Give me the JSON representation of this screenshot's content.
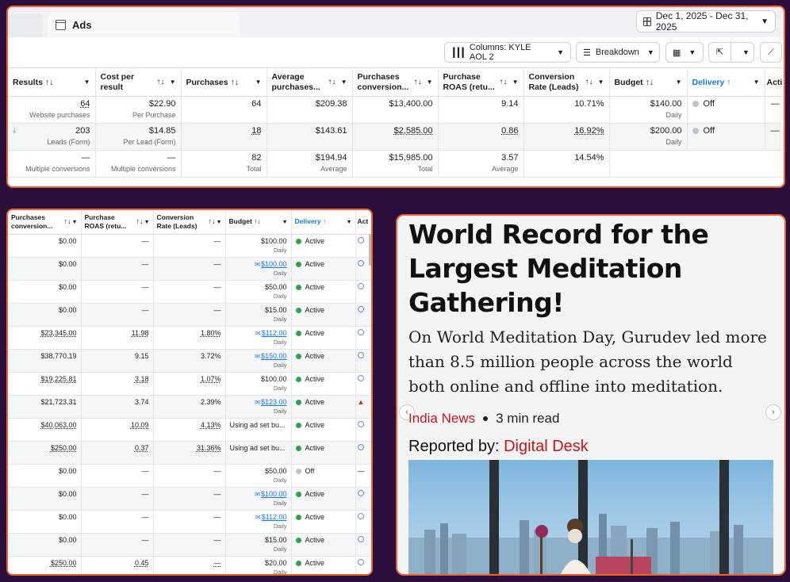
{
  "top_panel": {
    "tab_label": "Ads",
    "date_range": "Dec 1, 2025 - Dec 31, 2025",
    "toolbar": {
      "columns_label": "Columns: KYLE AOL 2",
      "breakdown_label": "Breakdown"
    },
    "headers": [
      "Results",
      "Cost per result",
      "Purchases",
      "Average purchases...",
      "Purchases conversion...",
      "Purchase ROAS (retu...",
      "Conversion Rate (Leads)",
      "Budget",
      "Delivery",
      "Acti"
    ],
    "rows": [
      {
        "results": "64",
        "results_sub": "Website purchases",
        "cost": "$22.90",
        "cost_sub": "Per Purchase",
        "purchases": "64",
        "avg": "$209.38",
        "conv_value": "$13,400.00",
        "roas": "9.14",
        "conv_rate": "10.71%",
        "budget": "$140.00",
        "budget_sub": "Daily",
        "delivery": "Off",
        "action": "—"
      },
      {
        "results": "203",
        "results_sub": "Leads (Form)",
        "cost": "$14.85",
        "cost_sub": "Per Lead (Form)",
        "purchases": "18",
        "avg": "$143.61",
        "conv_value": "$2,585.00",
        "roas": "0.86",
        "conv_rate": "16.92%",
        "budget": "$200.00",
        "budget_sub": "Daily",
        "delivery": "Off",
        "action": "—"
      }
    ],
    "totals": {
      "results": "—",
      "results_sub": "Multiple conversions",
      "cost": "—",
      "cost_sub": "Multiple conversions",
      "purchases": "82",
      "purchases_sub": "Total",
      "avg": "$194.94",
      "avg_sub": "Average",
      "conv_value": "$15,985.00",
      "conv_value_sub": "Total",
      "roas": "3.57",
      "roas_sub": "Average",
      "conv_rate": "14.54%"
    }
  },
  "left_panel": {
    "headers": [
      "Purchases conversion...",
      "Purchase ROAS (retu...",
      "Conversion Rate (Leads)",
      "Budget",
      "Delivery",
      "Act"
    ],
    "rows": [
      {
        "value": "$0.00",
        "roas": "—",
        "rate": "—",
        "budget": "$100.00",
        "budget_sub": "Daily",
        "status": "Active",
        "on": true
      },
      {
        "value": "$0.00",
        "roas": "—",
        "rate": "—",
        "budget": "$100.00",
        "budget_sub": "Daily",
        "status": "Active",
        "on": true,
        "edited": true
      },
      {
        "value": "$0.00",
        "roas": "—",
        "rate": "—",
        "budget": "$50.00",
        "budget_sub": "Daily",
        "status": "Active",
        "on": true
      },
      {
        "value": "$0.00",
        "roas": "—",
        "rate": "—",
        "budget": "$15.00",
        "budget_sub": "Daily",
        "status": "Active",
        "on": true
      },
      {
        "value": "$23,345.00",
        "roas": "11.98",
        "rate": "1.80%",
        "budget": "$112.00",
        "budget_sub": "Daily",
        "status": "Active",
        "on": true,
        "edited": true,
        "und": true
      },
      {
        "value": "$38,770.19",
        "roas": "9.15",
        "rate": "3.72%",
        "budget": "$150.00",
        "budget_sub": "Daily",
        "status": "Active",
        "on": true,
        "edited": true
      },
      {
        "value": "$19,225.81",
        "roas": "3.18",
        "rate": "1.07%",
        "budget": "$100.00",
        "budget_sub": "Daily",
        "status": "Active",
        "on": true,
        "und": true
      },
      {
        "value": "$21,723.31",
        "roas": "3.74",
        "rate": "2.39%",
        "budget": "$123.00",
        "budget_sub": "Daily",
        "status": "Active",
        "on": true,
        "edited": true,
        "warn": true
      },
      {
        "value": "$40,063.00",
        "roas": "10.09",
        "rate": "4.13%",
        "budget": "Using ad set bu...",
        "budget_sub": "",
        "status": "Active",
        "on": true,
        "und": true,
        "adset": true
      },
      {
        "value": "$250.00",
        "roas": "0.37",
        "rate": "31.36%",
        "budget": "Using ad set bu...",
        "budget_sub": "",
        "status": "Active",
        "on": true,
        "und": true,
        "adset": true
      },
      {
        "value": "$0.00",
        "roas": "—",
        "rate": "—",
        "budget": "$50.00",
        "budget_sub": "Daily",
        "status": "Off",
        "on": false
      },
      {
        "value": "$0.00",
        "roas": "—",
        "rate": "—",
        "budget": "$100.00",
        "budget_sub": "Daily",
        "status": "Active",
        "on": true,
        "edited": true
      },
      {
        "value": "$0.00",
        "roas": "—",
        "rate": "—",
        "budget": "$112.00",
        "budget_sub": "Daily",
        "status": "Active",
        "on": true,
        "edited": true
      },
      {
        "value": "$0.00",
        "roas": "—",
        "rate": "—",
        "budget": "$15.00",
        "budget_sub": "Daily",
        "status": "Active",
        "on": true
      },
      {
        "value": "$250.00",
        "roas": "0.45",
        "rate": "—",
        "budget": "$20.00",
        "budget_sub": "Daily",
        "status": "Active",
        "on": true,
        "und": true
      }
    ]
  },
  "article": {
    "headline": "World Record for the Largest Meditation Gathering!",
    "lede": "On World Meditation Day, Gurudev led more than 8.5 million people across the world both online and offline into meditation.",
    "category": "India News",
    "read_time": "3 min read",
    "byline_prefix": "Reported by:",
    "byline_name": "Digital Desk"
  },
  "colors": {
    "background": "#2a0f3d",
    "panel_border": "#f0612d",
    "active_green": "#31a24c",
    "link_blue": "#1877f2",
    "accent_red": "#c4161c"
  }
}
